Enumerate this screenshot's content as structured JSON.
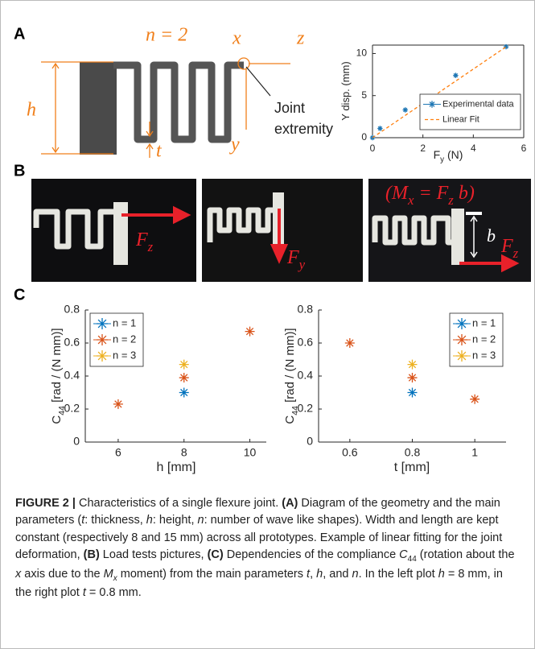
{
  "figure": {
    "panels": [
      "A",
      "B",
      "C"
    ],
    "diagram": {
      "n_label": "n = 2",
      "x": "x",
      "z": "z",
      "h": "h",
      "t": "t",
      "y": "y",
      "joint": [
        "Joint",
        "extremity"
      ]
    },
    "photos": [
      {
        "force": [
          "F",
          "z"
        ]
      },
      {
        "force": [
          "F",
          "y"
        ]
      },
      {
        "moment": [
          "(M",
          "x",
          " = F",
          "z",
          " b)"
        ],
        "b": "b",
        "force": [
          "F",
          "z"
        ]
      }
    ]
  },
  "chart_data": [
    {
      "type": "scatter",
      "xlabel": [
        "F",
        "y",
        " (N)"
      ],
      "ylabel": [
        "Y disp. (mm)"
      ],
      "xlim": [
        0,
        6
      ],
      "ylim": [
        0,
        11
      ],
      "xticks": [
        0,
        2,
        4,
        6
      ],
      "yticks": [
        0,
        5,
        10
      ],
      "legend": "lower right",
      "box": true,
      "series": [
        {
          "name": "Experimental data",
          "color": "#1f77b4",
          "style": "marker",
          "x": [
            0,
            0.3,
            1.3,
            3.3,
            5.3
          ],
          "values": [
            0,
            1.1,
            3.3,
            7.4,
            10.8
          ]
        },
        {
          "name": "Linear Fit",
          "color": "#ff7f0e",
          "style": "dashed",
          "x": [
            0,
            5.3
          ],
          "values": [
            0,
            10.8
          ]
        }
      ]
    },
    {
      "type": "scatter",
      "xlabel": [
        "h [mm]"
      ],
      "ylabel": [
        "C",
        "44",
        " [rad / (N mm)]"
      ],
      "xlim": [
        5,
        10.5
      ],
      "ylim": [
        0,
        0.8
      ],
      "xticks": [
        6,
        8,
        10
      ],
      "yticks": [
        0,
        0.2,
        0.4,
        0.6,
        0.8
      ],
      "legend": "upper left",
      "box": false,
      "series": [
        {
          "name": "n = 1",
          "color": "#0072bd",
          "style": "marker",
          "x": [
            8
          ],
          "values": [
            0.3
          ]
        },
        {
          "name": "n = 2",
          "color": "#d95319",
          "style": "marker",
          "x": [
            6,
            8,
            10
          ],
          "values": [
            0.23,
            0.39,
            0.67
          ]
        },
        {
          "name": "n = 3",
          "color": "#edb120",
          "style": "marker",
          "x": [
            8
          ],
          "values": [
            0.47
          ]
        }
      ]
    },
    {
      "type": "scatter",
      "xlabel": [
        "t [mm]"
      ],
      "ylabel": [
        "C",
        "44",
        " [rad / (N mm)]"
      ],
      "xlim": [
        0.5,
        1.1
      ],
      "ylim": [
        0,
        0.8
      ],
      "xticks": [
        0.6,
        0.8,
        1
      ],
      "yticks": [
        0,
        0.2,
        0.4,
        0.6,
        0.8
      ],
      "legend": "upper right",
      "box": false,
      "series": [
        {
          "name": "n = 1",
          "color": "#0072bd",
          "style": "marker",
          "x": [
            0.8
          ],
          "values": [
            0.3
          ]
        },
        {
          "name": "n = 2",
          "color": "#d95319",
          "style": "marker",
          "x": [
            0.6,
            0.8,
            1
          ],
          "values": [
            0.6,
            0.39,
            0.26
          ]
        },
        {
          "name": "n = 3",
          "color": "#edb120",
          "style": "marker",
          "x": [
            0.8
          ],
          "values": [
            0.47
          ]
        }
      ]
    }
  ],
  "caption": {
    "runs": [
      "FIGURE 2 |",
      " Characteristics of a single flexure joint. ",
      "(A)",
      " Diagram of the geometry and the main parameters (",
      "t",
      ": thickness, ",
      "h",
      ": height, ",
      "n",
      ": number of wave like shapes). Width and length are kept constant (respectively 8 and 15 mm) across all prototypes. Example of linear fitting for the joint deformation, ",
      "(B)",
      " Load tests pictures, ",
      "(C)",
      " Dependencies of the compliance ",
      "C",
      "44",
      " (rotation about the ",
      "x",
      " axis due to the ",
      "M",
      "x",
      " moment) from the main parameters ",
      "t",
      ", ",
      "h",
      ", and ",
      "n",
      ". In the left plot ",
      "h",
      " = 8 mm, in the right plot ",
      "t",
      " = 0.8 mm."
    ]
  }
}
